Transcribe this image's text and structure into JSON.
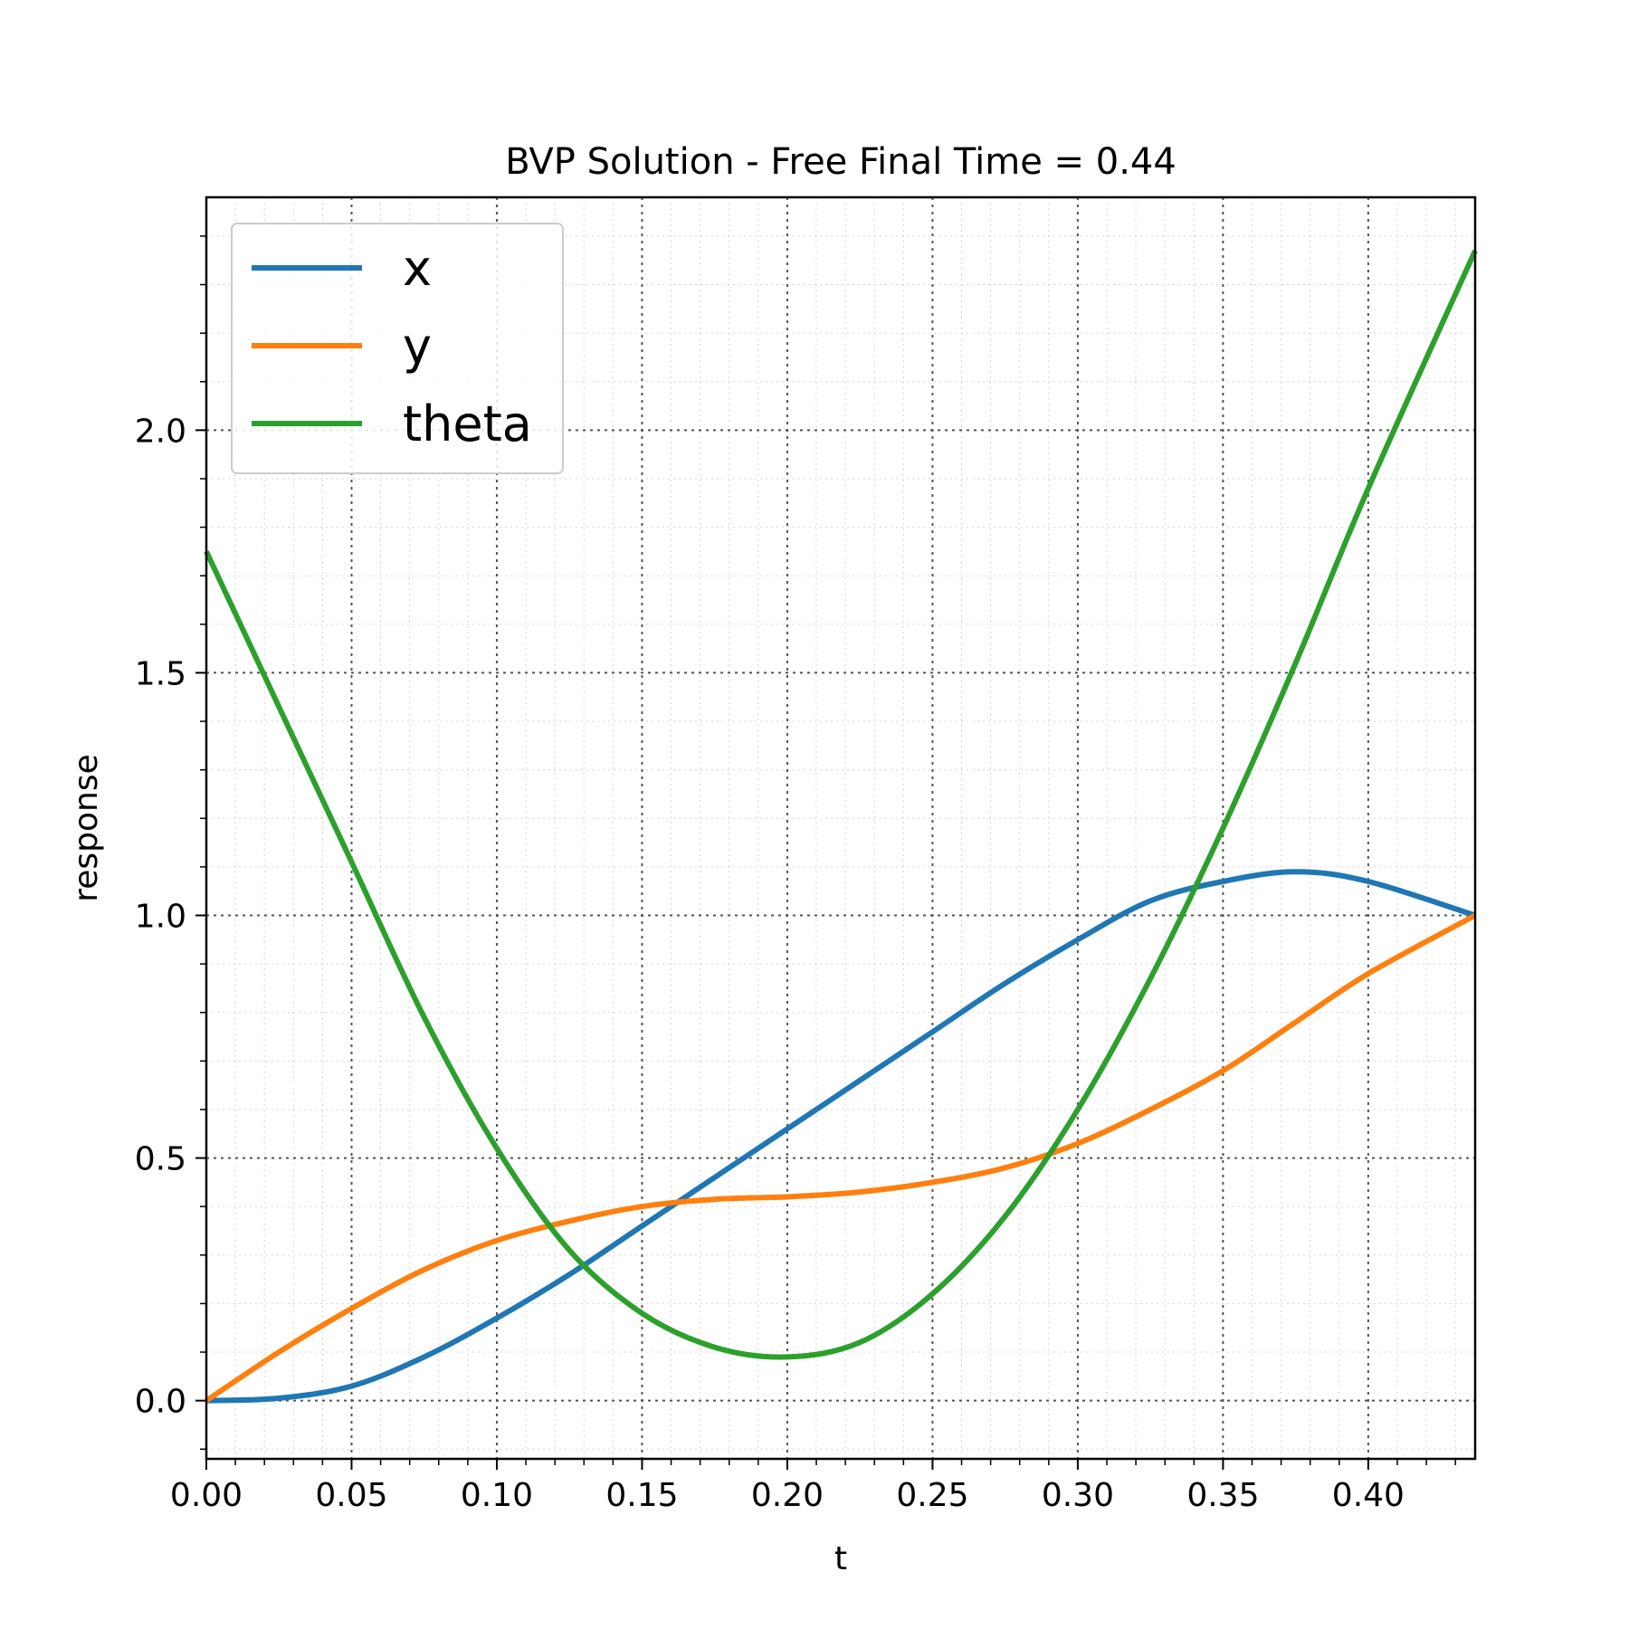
{
  "chart_data": {
    "type": "line",
    "title": "BVP Solution - Free Final Time = 0.44",
    "xlabel": "t",
    "ylabel": "response",
    "xlim": [
      0,
      0.4368
    ],
    "ylim": [
      -0.12,
      2.48
    ],
    "xticks": [
      0,
      0.05,
      0.1,
      0.15,
      0.2,
      0.25,
      0.3,
      0.35,
      0.4
    ],
    "xtick_labels": [
      "0.00",
      "0.05",
      "0.10",
      "0.15",
      "0.20",
      "0.25",
      "0.30",
      "0.35",
      "0.40"
    ],
    "yticks": [
      0,
      0.5,
      1.0,
      1.5,
      2.0
    ],
    "ytick_labels": [
      "0.0",
      "0.5",
      "1.0",
      "1.5",
      "2.0"
    ],
    "grid": true,
    "minor_grid": true,
    "legend_position": "upper-left",
    "x": [
      0,
      0.025,
      0.05,
      0.075,
      0.1,
      0.125,
      0.15,
      0.175,
      0.2,
      0.225,
      0.25,
      0.275,
      0.3,
      0.325,
      0.35,
      0.375,
      0.4,
      0.4368
    ],
    "series": [
      {
        "name": "x",
        "color": "#1f77b4",
        "values": [
          0,
          0.005,
          0.03,
          0.09,
          0.17,
          0.26,
          0.36,
          0.46,
          0.56,
          0.66,
          0.76,
          0.86,
          0.95,
          1.03,
          1.07,
          1.09,
          1.07,
          1.0
        ]
      },
      {
        "name": "y",
        "color": "#ff7f0e",
        "values": [
          0,
          0.1,
          0.19,
          0.27,
          0.33,
          0.37,
          0.4,
          0.415,
          0.42,
          0.43,
          0.45,
          0.48,
          0.53,
          0.6,
          0.68,
          0.78,
          0.88,
          1.0
        ]
      },
      {
        "name": "theta",
        "color": "#2ca02c",
        "values": [
          1.75,
          1.43,
          1.11,
          0.79,
          0.52,
          0.31,
          0.18,
          0.11,
          0.09,
          0.12,
          0.22,
          0.38,
          0.6,
          0.87,
          1.18,
          1.52,
          1.88,
          2.37
        ]
      }
    ]
  }
}
